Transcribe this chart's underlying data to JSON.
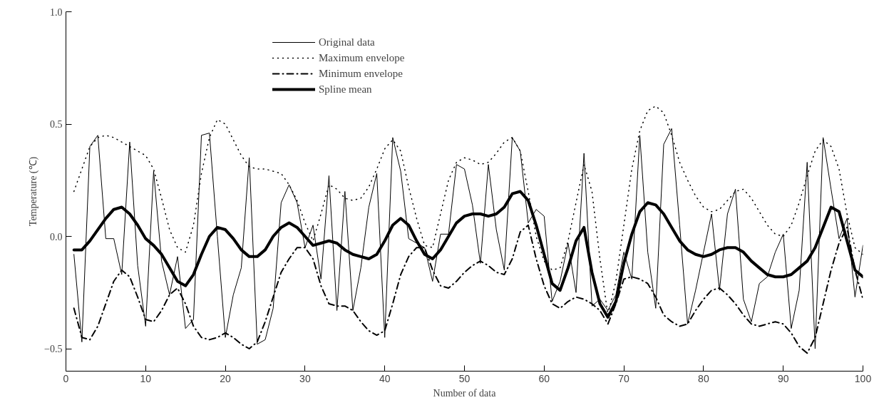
{
  "chart_data": {
    "type": "line",
    "xlabel": "Number of data",
    "ylabel": "Temperature (℃)",
    "x": [
      1,
      2,
      3,
      4,
      5,
      6,
      7,
      8,
      9,
      10,
      11,
      12,
      13,
      14,
      15,
      16,
      17,
      18,
      19,
      20,
      21,
      22,
      23,
      24,
      25,
      26,
      27,
      28,
      29,
      30,
      31,
      32,
      33,
      34,
      35,
      36,
      37,
      38,
      39,
      40,
      41,
      42,
      43,
      44,
      45,
      46,
      47,
      48,
      49,
      50,
      51,
      52,
      53,
      54,
      55,
      56,
      57,
      58,
      59,
      60,
      61,
      62,
      63,
      64,
      65,
      66,
      67,
      68,
      69,
      70,
      71,
      72,
      73,
      74,
      75,
      76,
      77,
      78,
      79,
      80,
      81,
      82,
      83,
      84,
      85,
      86,
      87,
      88,
      89,
      90,
      91,
      92,
      93,
      94,
      95,
      96,
      97,
      98,
      99,
      100
    ],
    "series": [
      {
        "name": "Original data",
        "color": "#000000",
        "line_style": "solid",
        "values": [
          -0.08,
          -0.47,
          0.4,
          0.45,
          -0.01,
          -0.01,
          -0.17,
          0.42,
          -0.13,
          -0.4,
          0.29,
          -0.11,
          -0.26,
          -0.09,
          -0.41,
          -0.37,
          0.45,
          0.46,
          0.0,
          -0.45,
          -0.26,
          -0.14,
          0.35,
          -0.48,
          -0.46,
          -0.32,
          0.15,
          0.23,
          0.15,
          -0.05,
          0.05,
          -0.19,
          0.27,
          -0.33,
          0.2,
          -0.33,
          -0.14,
          0.13,
          0.28,
          -0.45,
          0.44,
          0.29,
          -0.01,
          -0.03,
          -0.05,
          -0.2,
          0.01,
          0.01,
          0.32,
          0.3,
          0.14,
          -0.12,
          0.32,
          0.03,
          -0.15,
          0.44,
          0.38,
          0.06,
          0.12,
          0.09,
          -0.29,
          -0.2,
          -0.03,
          -0.25,
          0.37,
          -0.31,
          -0.28,
          -0.33,
          -0.26,
          -0.07,
          -0.19,
          0.45,
          -0.07,
          -0.32,
          0.41,
          0.48,
          0.05,
          -0.39,
          -0.24,
          -0.07,
          0.1,
          -0.24,
          0.1,
          0.21,
          -0.28,
          -0.38,
          -0.21,
          -0.18,
          -0.07,
          0.01,
          -0.41,
          -0.24,
          0.33,
          -0.5,
          0.44,
          0.21,
          -0.01,
          0.08,
          -0.27,
          -0.04
        ]
      },
      {
        "name": "Maximum envelope",
        "color": "#000000",
        "line_style": "dotted",
        "values": [
          0.2,
          0.3,
          0.4,
          0.44,
          0.45,
          0.44,
          0.42,
          0.4,
          0.38,
          0.36,
          0.3,
          0.17,
          0.03,
          -0.05,
          -0.07,
          0.05,
          0.28,
          0.44,
          0.52,
          0.5,
          0.43,
          0.36,
          0.31,
          0.3,
          0.3,
          0.29,
          0.28,
          0.23,
          0.16,
          0.06,
          -0.02,
          0.1,
          0.23,
          0.21,
          0.17,
          0.16,
          0.17,
          0.22,
          0.3,
          0.39,
          0.43,
          0.38,
          0.22,
          0.08,
          -0.04,
          -0.05,
          0.1,
          0.25,
          0.33,
          0.35,
          0.34,
          0.32,
          0.33,
          0.37,
          0.42,
          0.44,
          0.38,
          0.2,
          0.0,
          -0.11,
          -0.15,
          -0.14,
          -0.02,
          0.15,
          0.32,
          0.2,
          -0.1,
          -0.35,
          -0.2,
          0.05,
          0.3,
          0.47,
          0.56,
          0.58,
          0.55,
          0.45,
          0.33,
          0.25,
          0.18,
          0.13,
          0.11,
          0.12,
          0.16,
          0.2,
          0.21,
          0.17,
          0.11,
          0.05,
          0.01,
          0.0,
          0.05,
          0.15,
          0.27,
          0.38,
          0.43,
          0.4,
          0.3,
          0.1,
          -0.05,
          -0.08
        ]
      },
      {
        "name": "Minimum envelope",
        "color": "#000000",
        "line_style": "dashdot",
        "values": [
          -0.32,
          -0.45,
          -0.46,
          -0.4,
          -0.3,
          -0.2,
          -0.15,
          -0.18,
          -0.27,
          -0.37,
          -0.38,
          -0.33,
          -0.26,
          -0.23,
          -0.3,
          -0.4,
          -0.45,
          -0.46,
          -0.45,
          -0.43,
          -0.45,
          -0.48,
          -0.5,
          -0.47,
          -0.38,
          -0.27,
          -0.16,
          -0.1,
          -0.05,
          -0.05,
          -0.1,
          -0.22,
          -0.3,
          -0.31,
          -0.31,
          -0.33,
          -0.38,
          -0.42,
          -0.44,
          -0.42,
          -0.3,
          -0.17,
          -0.09,
          -0.05,
          -0.05,
          -0.15,
          -0.22,
          -0.23,
          -0.2,
          -0.16,
          -0.13,
          -0.11,
          -0.13,
          -0.16,
          -0.17,
          -0.1,
          0.02,
          0.05,
          -0.1,
          -0.22,
          -0.3,
          -0.32,
          -0.29,
          -0.27,
          -0.28,
          -0.3,
          -0.33,
          -0.39,
          -0.3,
          -0.19,
          -0.18,
          -0.19,
          -0.21,
          -0.27,
          -0.35,
          -0.38,
          -0.4,
          -0.39,
          -0.33,
          -0.28,
          -0.24,
          -0.23,
          -0.26,
          -0.3,
          -0.35,
          -0.39,
          -0.4,
          -0.39,
          -0.38,
          -0.39,
          -0.43,
          -0.49,
          -0.52,
          -0.45,
          -0.3,
          -0.15,
          -0.03,
          0.04,
          -0.15,
          -0.28
        ]
      },
      {
        "name": "Spline mean",
        "color": "#000000",
        "line_style": "solid",
        "values": [
          -0.06,
          -0.06,
          -0.02,
          0.03,
          0.08,
          0.12,
          0.13,
          0.1,
          0.05,
          -0.01,
          -0.04,
          -0.08,
          -0.14,
          -0.2,
          -0.22,
          -0.17,
          -0.08,
          0.0,
          0.04,
          0.03,
          -0.01,
          -0.06,
          -0.09,
          -0.09,
          -0.06,
          0.0,
          0.04,
          0.06,
          0.04,
          0.0,
          -0.04,
          -0.03,
          -0.02,
          -0.03,
          -0.06,
          -0.08,
          -0.09,
          -0.1,
          -0.08,
          -0.02,
          0.05,
          0.08,
          0.05,
          -0.02,
          -0.08,
          -0.1,
          -0.06,
          0.0,
          0.06,
          0.09,
          0.1,
          0.1,
          0.09,
          0.1,
          0.13,
          0.19,
          0.2,
          0.16,
          0.05,
          -0.08,
          -0.21,
          -0.24,
          -0.14,
          -0.02,
          0.04,
          -0.16,
          -0.3,
          -0.36,
          -0.29,
          -0.12,
          0.01,
          0.11,
          0.15,
          0.14,
          0.1,
          0.04,
          -0.02,
          -0.06,
          -0.08,
          -0.09,
          -0.08,
          -0.06,
          -0.05,
          -0.05,
          -0.07,
          -0.11,
          -0.14,
          -0.17,
          -0.18,
          -0.18,
          -0.17,
          -0.14,
          -0.11,
          -0.05,
          0.04,
          0.13,
          0.11,
          -0.02,
          -0.15,
          -0.18
        ]
      }
    ],
    "xlim": [
      0,
      100
    ],
    "xticks": [
      0,
      10,
      20,
      30,
      40,
      50,
      60,
      70,
      80,
      90,
      100
    ],
    "ylim": [
      -0.6,
      1.0
    ],
    "yticks": [
      {
        "value": -0.5,
        "label": "−0.5"
      },
      {
        "value": 0,
        "label": "0.0"
      },
      {
        "value": 0.5,
        "label": "0.5"
      },
      {
        "value": 1.0,
        "label": "1.0"
      }
    ],
    "grid": false,
    "legend": "top",
    "marker": "none"
  }
}
